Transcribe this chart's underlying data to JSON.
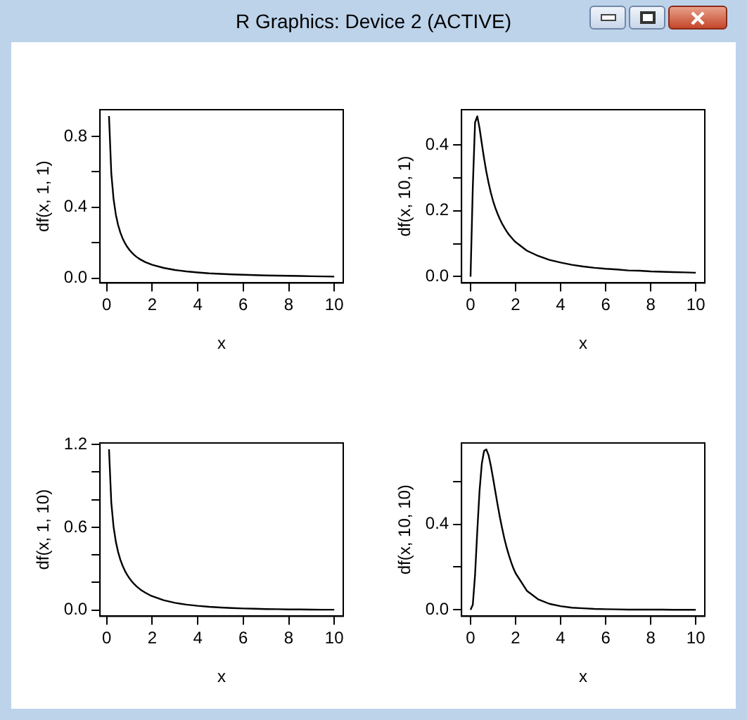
{
  "chart_data": [
    {
      "type": "other",
      "title": "R Graphics: Device 2 (ACTIVE)"
    },
    {
      "type": "line",
      "xlabel": "x",
      "ylabel": "df(x, 1, 1)",
      "grid": false,
      "legend": false,
      "marker": "none",
      "line_style": "solid",
      "xlim": [
        -0.296,
        10.396
      ],
      "ylim": [
        -0.027,
        0.951
      ],
      "xticks": [
        0,
        2,
        4,
        6,
        8,
        10
      ],
      "yticks": [
        {
          "value": 0,
          "label": "0.0"
        },
        {
          "value": 0.2,
          "label": null
        },
        {
          "value": 0.4,
          "label": "0.4"
        },
        {
          "value": 0.6,
          "label": null
        },
        {
          "value": 0.8,
          "label": "0.8"
        }
      ],
      "x": [
        0.1,
        0.2,
        0.3,
        0.4,
        0.5,
        0.6,
        0.7,
        0.8,
        0.9,
        1.0,
        1.1,
        1.2,
        1.3,
        1.4,
        1.5,
        1.6,
        1.7,
        1.8,
        1.9,
        2.0,
        2.5,
        3,
        3.5,
        4,
        4.5,
        5,
        5.5,
        6,
        6.5,
        7,
        7.5,
        8,
        8.5,
        9,
        9.5,
        10
      ],
      "series": [
        {
          "color": "#000000",
          "values": [
            0.915,
            0.593,
            0.447,
            0.359,
            0.3,
            0.257,
            0.224,
            0.198,
            0.177,
            0.159,
            0.145,
            0.132,
            0.121,
            0.112,
            0.104,
            0.097,
            0.09,
            0.085,
            0.08,
            0.075,
            0.058,
            0.046,
            0.038,
            0.032,
            0.027,
            0.024,
            0.021,
            0.019,
            0.017,
            0.015,
            0.014,
            0.013,
            0.012,
            0.011,
            0.01,
            0.009
          ]
        }
      ]
    },
    {
      "type": "line",
      "xlabel": "x",
      "ylabel": "df(x, 10, 1)",
      "grid": false,
      "legend": false,
      "marker": "none",
      "line_style": "solid",
      "xlim": [
        -0.4,
        10.4
      ],
      "ylim": [
        -0.019,
        0.507
      ],
      "xticks": [
        0,
        2,
        4,
        6,
        8,
        10
      ],
      "yticks": [
        {
          "value": 0,
          "label": "0.0"
        },
        {
          "value": 0.1,
          "label": null
        },
        {
          "value": 0.2,
          "label": "0.2"
        },
        {
          "value": 0.3,
          "label": null
        },
        {
          "value": 0.4,
          "label": "0.4"
        }
      ],
      "x": [
        0,
        0.1,
        0.2,
        0.3,
        0.4,
        0.5,
        0.6,
        0.7,
        0.8,
        0.9,
        1.0,
        1.1,
        1.2,
        1.3,
        1.4,
        1.5,
        1.6,
        1.7,
        1.8,
        1.9,
        2.0,
        2.5,
        3,
        3.5,
        4,
        4.5,
        5,
        5.5,
        6,
        6.5,
        7,
        7.5,
        8,
        8.5,
        9,
        9.5,
        10
      ],
      "series": [
        {
          "color": "#000000",
          "values": [
            0,
            0.272,
            0.468,
            0.487,
            0.451,
            0.404,
            0.359,
            0.319,
            0.285,
            0.255,
            0.23,
            0.209,
            0.191,
            0.175,
            0.161,
            0.149,
            0.138,
            0.128,
            0.12,
            0.112,
            0.105,
            0.079,
            0.063,
            0.051,
            0.043,
            0.036,
            0.031,
            0.027,
            0.024,
            0.022,
            0.019,
            0.018,
            0.016,
            0.015,
            0.014,
            0.013,
            0.012
          ]
        }
      ]
    },
    {
      "type": "line",
      "xlabel": "x",
      "ylabel": "df(x, 1, 10)",
      "grid": false,
      "legend": false,
      "marker": "none",
      "line_style": "solid",
      "xlim": [
        -0.296,
        10.396
      ],
      "ylim": [
        -0.044,
        1.211
      ],
      "xticks": [
        0,
        2,
        4,
        6,
        8,
        10
      ],
      "yticks": [
        {
          "value": 0,
          "label": "0.0"
        },
        {
          "value": 0.2,
          "label": null
        },
        {
          "value": 0.4,
          "label": null
        },
        {
          "value": 0.6,
          "label": "0.6"
        },
        {
          "value": 0.8,
          "label": null
        },
        {
          "value": 1.0,
          "label": null
        },
        {
          "value": 1.2,
          "label": "1.2"
        }
      ],
      "x": [
        0.1,
        0.2,
        0.3,
        0.4,
        0.5,
        0.6,
        0.7,
        0.8,
        0.9,
        1.0,
        1.1,
        1.2,
        1.3,
        1.4,
        1.5,
        1.6,
        1.7,
        1.8,
        1.9,
        2.0,
        2.5,
        3,
        3.5,
        4,
        4.5,
        5,
        5.5,
        6,
        6.5,
        7,
        7.5,
        8,
        8.5,
        9,
        9.5,
        10
      ],
      "series": [
        {
          "color": "#000000",
          "values": [
            1.165,
            0.78,
            0.604,
            0.496,
            0.421,
            0.365,
            0.321,
            0.285,
            0.255,
            0.23,
            0.209,
            0.19,
            0.174,
            0.16,
            0.147,
            0.136,
            0.126,
            0.117,
            0.108,
            0.101,
            0.072,
            0.053,
            0.04,
            0.031,
            0.024,
            0.019,
            0.015,
            0.012,
            0.01,
            0.008,
            0.007,
            0.005,
            0.005,
            0.004,
            0.003,
            0.003
          ]
        }
      ]
    },
    {
      "type": "line",
      "xlabel": "x",
      "ylabel": "df(x, 10, 10)",
      "grid": false,
      "legend": false,
      "marker": "none",
      "line_style": "solid",
      "xlim": [
        -0.4,
        10.4
      ],
      "ylim": [
        -0.03,
        0.78
      ],
      "xticks": [
        0,
        2,
        4,
        6,
        8,
        10
      ],
      "yticks": [
        {
          "value": 0,
          "label": "0.0"
        },
        {
          "value": 0.2,
          "label": null
        },
        {
          "value": 0.4,
          "label": "0.4"
        },
        {
          "value": 0.6,
          "label": null
        }
      ],
      "x": [
        0,
        0.1,
        0.2,
        0.3,
        0.4,
        0.5,
        0.6,
        0.7,
        0.8,
        0.9,
        1.0,
        1.1,
        1.2,
        1.3,
        1.4,
        1.5,
        1.6,
        1.7,
        1.8,
        1.9,
        2.0,
        2.5,
        3,
        3.5,
        4,
        4.5,
        5,
        5.5,
        6,
        6.5,
        7,
        7.5,
        8,
        8.5,
        9,
        9.5,
        10
      ],
      "series": [
        {
          "color": "#000000",
          "values": [
            0,
            0.024,
            0.163,
            0.37,
            0.558,
            0.683,
            0.743,
            0.75,
            0.723,
            0.674,
            0.615,
            0.553,
            0.492,
            0.434,
            0.382,
            0.334,
            0.292,
            0.256,
            0.223,
            0.195,
            0.171,
            0.089,
            0.049,
            0.028,
            0.017,
            0.01,
            0.007,
            0.004,
            0.003,
            0.002,
            0.001,
            0.001,
            0.001,
            0.001,
            0.0,
            0.0,
            0.0
          ]
        }
      ]
    }
  ]
}
